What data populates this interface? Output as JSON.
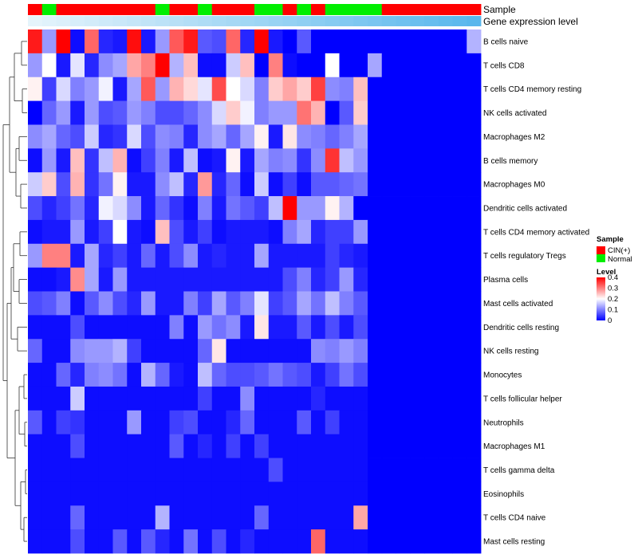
{
  "chart_data": {
    "type": "heatmap",
    "title": "",
    "color_scale": {
      "title": "Level",
      "min": 0,
      "max": 0.4,
      "stops": [
        {
          "value": 0,
          "color": "#0000ff"
        },
        {
          "value": 0.2,
          "color": "#ffffff"
        },
        {
          "value": 0.4,
          "color": "#ff0000"
        }
      ],
      "ticks": [
        "0.4",
        "0.3",
        "0.2",
        "0.1",
        "0"
      ]
    },
    "annotations": {
      "sample": {
        "label": "Sample",
        "legend_title": "Sample",
        "levels": [
          {
            "name": "CIN(+)",
            "color": "#ff0000"
          },
          {
            "name": "Normal",
            "color": "#00ee00"
          }
        ],
        "values": [
          "CIN(+)",
          "Normal",
          "CIN(+)",
          "CIN(+)",
          "CIN(+)",
          "CIN(+)",
          "CIN(+)",
          "CIN(+)",
          "CIN(+)",
          "Normal",
          "CIN(+)",
          "CIN(+)",
          "Normal",
          "CIN(+)",
          "CIN(+)",
          "CIN(+)",
          "Normal",
          "Normal",
          "CIN(+)",
          "Normal",
          "CIN(+)",
          "Normal",
          "Normal",
          "Normal",
          "Normal",
          "CIN(+)",
          "CIN(+)",
          "CIN(+)",
          "CIN(+)",
          "CIN(+)",
          "CIN(+)",
          "CIN(+)"
        ]
      },
      "gene_expression": {
        "label": "Gene expression level",
        "values": [
          0.05,
          0.08,
          0.11,
          0.14,
          0.17,
          0.2,
          0.23,
          0.26,
          0.29,
          0.32,
          0.35,
          0.38,
          0.41,
          0.44,
          0.47,
          0.5,
          0.53,
          0.56,
          0.59,
          0.62,
          0.65,
          0.68,
          0.71,
          0.74,
          0.77,
          0.8,
          0.83,
          0.86,
          0.89,
          0.92,
          0.95,
          0.98
        ]
      }
    },
    "rows": [
      "B cells naive",
      "T cells CD8",
      "T cells CD4 memory resting",
      "NK cells activated",
      "Macrophages M2",
      "B cells memory",
      "Macrophages M0",
      "Dendritic cells activated",
      "T cells CD4 memory activated",
      "T cells regulatory  Tregs",
      "Plasma cells",
      "Mast cells activated",
      "Dendritic cells resting",
      "NK cells resting",
      "Monocytes",
      "T cells follicular helper",
      "Neutrophils",
      "Macrophages M1",
      "T cells gamma delta",
      "Eosinophils",
      "T cells CD4 naive",
      "Mast cells resting"
    ],
    "values": [
      [
        0.38,
        0.12,
        0.4,
        0.01,
        0.32,
        0.03,
        0.02,
        0.39,
        0.02,
        0.12,
        0.33,
        0.38,
        0.07,
        0.06,
        0.32,
        0.03,
        0.4,
        0.02,
        0.0,
        0.07,
        0.0,
        0.0,
        0.0,
        0.0,
        0.0,
        0.0,
        0.0,
        0.0,
        0.0,
        0.0,
        0.0,
        0.14
      ],
      [
        0.12,
        0.2,
        0.02,
        0.18,
        0.03,
        0.11,
        0.13,
        0.27,
        0.3,
        0.4,
        0.14,
        0.25,
        0.01,
        0.01,
        0.16,
        0.25,
        0.0,
        0.3,
        0.01,
        0.0,
        0.0,
        0.2,
        0.0,
        0.0,
        0.13,
        0.0,
        0.0,
        0.0,
        0.0,
        0.0,
        0.0,
        0.0
      ],
      [
        0.21,
        0.05,
        0.17,
        0.1,
        0.12,
        0.19,
        0.02,
        0.13,
        0.33,
        0.12,
        0.26,
        0.23,
        0.18,
        0.34,
        0.2,
        0.17,
        0.1,
        0.24,
        0.27,
        0.24,
        0.35,
        0.11,
        0.1,
        0.25,
        0.0,
        0.0,
        0.0,
        0.0,
        0.0,
        0.0,
        0.0,
        0.0
      ],
      [
        0.0,
        0.08,
        0.12,
        0.02,
        0.12,
        0.06,
        0.07,
        0.12,
        0.1,
        0.06,
        0.06,
        0.08,
        0.11,
        0.17,
        0.24,
        0.19,
        0.1,
        0.12,
        0.12,
        0.31,
        0.26,
        0.0,
        0.07,
        0.24,
        0.0,
        0.0,
        0.0,
        0.0,
        0.0,
        0.0,
        0.0,
        0.0
      ],
      [
        0.11,
        0.13,
        0.08,
        0.06,
        0.16,
        0.03,
        0.04,
        0.17,
        0.06,
        0.11,
        0.1,
        0.03,
        0.11,
        0.13,
        0.08,
        0.13,
        0.21,
        0.02,
        0.22,
        0.11,
        0.1,
        0.08,
        0.1,
        0.13,
        0.0,
        0.0,
        0.0,
        0.0,
        0.0,
        0.0,
        0.0,
        0.0
      ],
      [
        0.01,
        0.12,
        0.02,
        0.25,
        0.04,
        0.15,
        0.26,
        0.01,
        0.05,
        0.1,
        0.02,
        0.15,
        0.01,
        0.02,
        0.21,
        0.02,
        0.13,
        0.1,
        0.11,
        0.04,
        0.11,
        0.36,
        0.15,
        0.12,
        0.0,
        0.0,
        0.0,
        0.0,
        0.0,
        0.0,
        0.0,
        0.0
      ],
      [
        0.16,
        0.24,
        0.06,
        0.26,
        0.04,
        0.09,
        0.21,
        0.02,
        0.02,
        0.11,
        0.15,
        0.03,
        0.28,
        0.03,
        0.08,
        0.01,
        0.16,
        0.01,
        0.05,
        0.01,
        0.07,
        0.07,
        0.08,
        0.09,
        0.0,
        0.0,
        0.0,
        0.0,
        0.0,
        0.0,
        0.0,
        0.0
      ],
      [
        0.06,
        0.03,
        0.05,
        0.09,
        0.03,
        0.19,
        0.17,
        0.11,
        0.02,
        0.08,
        0.04,
        0.01,
        0.1,
        0.02,
        0.09,
        0.07,
        0.05,
        0.15,
        0.4,
        0.12,
        0.12,
        0.21,
        0.14,
        0.0,
        0.0,
        0.0,
        0.0,
        0.0,
        0.0,
        0.0,
        0.0,
        0.0
      ],
      [
        0.01,
        0.02,
        0.02,
        0.12,
        0.02,
        0.05,
        0.2,
        0.02,
        0.01,
        0.25,
        0.06,
        0.02,
        0.05,
        0.01,
        0.02,
        0.02,
        0.02,
        0.01,
        0.1,
        0.13,
        0.03,
        0.05,
        0.05,
        0.12,
        0.0,
        0.0,
        0.0,
        0.0,
        0.0,
        0.0,
        0.0,
        0.0
      ],
      [
        0.12,
        0.3,
        0.3,
        0.02,
        0.13,
        0.03,
        0.05,
        0.02,
        0.08,
        0.02,
        0.06,
        0.11,
        0.02,
        0.03,
        0.02,
        0.02,
        0.13,
        0.02,
        0.02,
        0.02,
        0.02,
        0.05,
        0.03,
        0.02,
        0.0,
        0.0,
        0.0,
        0.0,
        0.0,
        0.0,
        0.0,
        0.0
      ],
      [
        0.01,
        0.01,
        0.02,
        0.29,
        0.13,
        0.02,
        0.12,
        0.02,
        0.02,
        0.02,
        0.02,
        0.02,
        0.02,
        0.02,
        0.02,
        0.02,
        0.02,
        0.02,
        0.06,
        0.1,
        0.03,
        0.05,
        0.12,
        0.03,
        0.0,
        0.0,
        0.0,
        0.0,
        0.0,
        0.0,
        0.0,
        0.0
      ],
      [
        0.06,
        0.07,
        0.1,
        0.01,
        0.07,
        0.11,
        0.06,
        0.03,
        0.12,
        0.02,
        0.02,
        0.1,
        0.05,
        0.13,
        0.07,
        0.1,
        0.18,
        0.05,
        0.07,
        0.13,
        0.09,
        0.15,
        0.1,
        0.07,
        0.0,
        0.0,
        0.0,
        0.0,
        0.0,
        0.0,
        0.0,
        0.0
      ],
      [
        0.01,
        0.01,
        0.01,
        0.06,
        0.01,
        0.01,
        0.01,
        0.01,
        0.01,
        0.01,
        0.1,
        0.01,
        0.12,
        0.09,
        0.11,
        0.02,
        0.22,
        0.02,
        0.02,
        0.07,
        0.02,
        0.06,
        0.02,
        0.06,
        0.0,
        0.0,
        0.0,
        0.0,
        0.0,
        0.0,
        0.0,
        0.0
      ],
      [
        0.08,
        0.01,
        0.01,
        0.11,
        0.12,
        0.12,
        0.14,
        0.05,
        0.01,
        0.01,
        0.01,
        0.01,
        0.08,
        0.22,
        0.01,
        0.01,
        0.01,
        0.01,
        0.01,
        0.01,
        0.11,
        0.1,
        0.12,
        0.1,
        0.0,
        0.0,
        0.0,
        0.0,
        0.0,
        0.0,
        0.0,
        0.0
      ],
      [
        0.01,
        0.01,
        0.08,
        0.03,
        0.1,
        0.11,
        0.09,
        0.01,
        0.14,
        0.08,
        0.02,
        0.01,
        0.15,
        0.08,
        0.06,
        0.06,
        0.07,
        0.09,
        0.07,
        0.06,
        0.02,
        0.05,
        0.09,
        0.06,
        0.0,
        0.0,
        0.0,
        0.0,
        0.0,
        0.0,
        0.0,
        0.0
      ],
      [
        0.01,
        0.01,
        0.01,
        0.16,
        0.01,
        0.01,
        0.01,
        0.01,
        0.01,
        0.01,
        0.01,
        0.01,
        0.05,
        0.01,
        0.01,
        0.11,
        0.01,
        0.01,
        0.01,
        0.01,
        0.03,
        0.01,
        0.01,
        0.01,
        0.0,
        0.0,
        0.0,
        0.0,
        0.0,
        0.0,
        0.0,
        0.0
      ],
      [
        0.07,
        0.01,
        0.05,
        0.04,
        0.01,
        0.01,
        0.01,
        0.12,
        0.01,
        0.01,
        0.05,
        0.06,
        0.01,
        0.01,
        0.03,
        0.08,
        0.01,
        0.01,
        0.01,
        0.07,
        0.01,
        0.05,
        0.01,
        0.01,
        0.0,
        0.0,
        0.0,
        0.0,
        0.0,
        0.0,
        0.0,
        0.0
      ],
      [
        0.01,
        0.01,
        0.01,
        0.06,
        0.01,
        0.01,
        0.01,
        0.01,
        0.01,
        0.01,
        0.07,
        0.01,
        0.03,
        0.01,
        0.05,
        0.01,
        0.05,
        0.01,
        0.01,
        0.01,
        0.01,
        0.01,
        0.01,
        0.01,
        0.0,
        0.0,
        0.0,
        0.0,
        0.0,
        0.0,
        0.0,
        0.0
      ],
      [
        0.01,
        0.01,
        0.01,
        0.01,
        0.01,
        0.01,
        0.01,
        0.01,
        0.01,
        0.01,
        0.01,
        0.01,
        0.01,
        0.01,
        0.01,
        0.01,
        0.01,
        0.06,
        0.01,
        0.01,
        0.01,
        0.01,
        0.01,
        0.01,
        0.0,
        0.0,
        0.0,
        0.0,
        0.0,
        0.0,
        0.0,
        0.0
      ],
      [
        0.01,
        0.01,
        0.01,
        0.01,
        0.01,
        0.01,
        0.01,
        0.01,
        0.01,
        0.01,
        0.01,
        0.01,
        0.01,
        0.01,
        0.01,
        0.01,
        0.01,
        0.01,
        0.01,
        0.01,
        0.01,
        0.01,
        0.01,
        0.01,
        0.0,
        0.0,
        0.0,
        0.0,
        0.0,
        0.0,
        0.0,
        0.0
      ],
      [
        0.01,
        0.01,
        0.01,
        0.08,
        0.01,
        0.01,
        0.01,
        0.01,
        0.01,
        0.14,
        0.01,
        0.01,
        0.01,
        0.01,
        0.01,
        0.01,
        0.08,
        0.01,
        0.01,
        0.01,
        0.01,
        0.01,
        0.01,
        0.27,
        0.0,
        0.0,
        0.0,
        0.0,
        0.0,
        0.0,
        0.0,
        0.0
      ],
      [
        0.01,
        0.01,
        0.01,
        0.06,
        0.01,
        0.01,
        0.07,
        0.01,
        0.07,
        0.03,
        0.01,
        0.09,
        0.01,
        0.06,
        0.01,
        0.03,
        0.01,
        0.01,
        0.01,
        0.01,
        0.32,
        0.01,
        0.01,
        0.01,
        0.0,
        0.0,
        0.0,
        0.0,
        0.0,
        0.0,
        0.0,
        0.0
      ]
    ]
  }
}
